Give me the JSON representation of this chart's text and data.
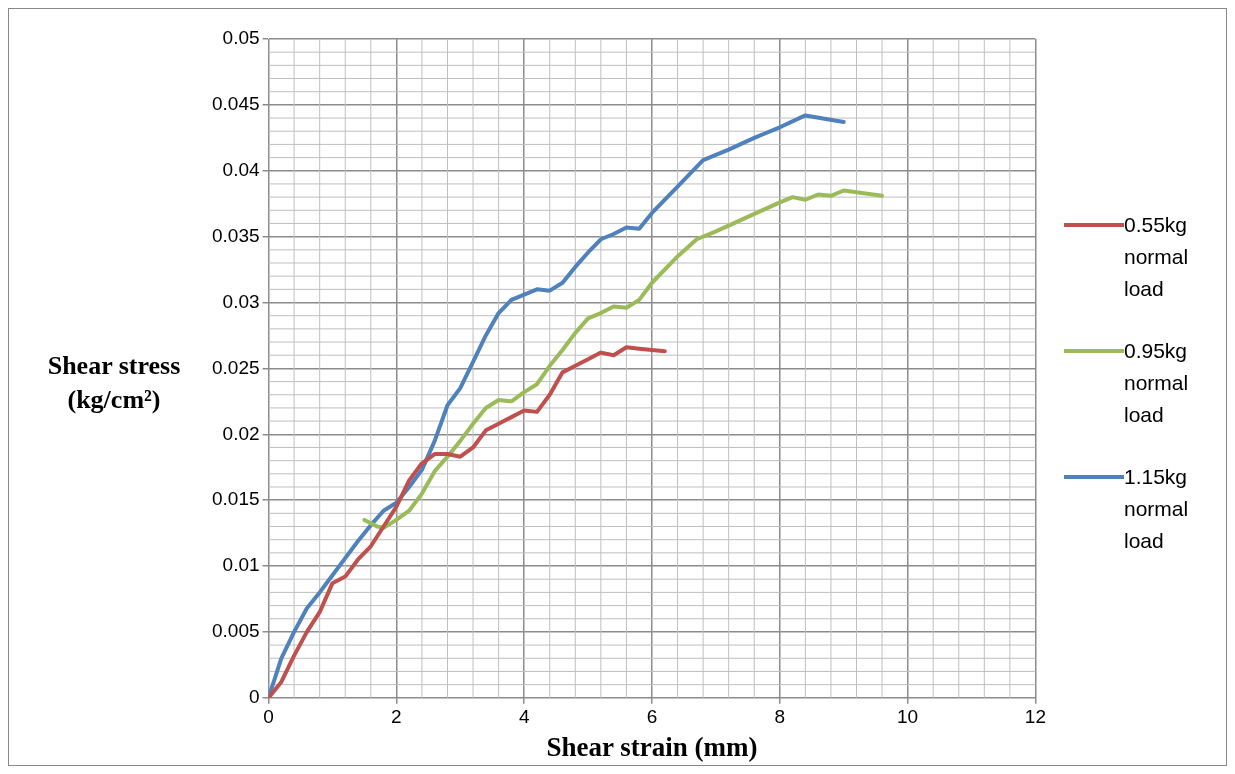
{
  "chart_data": {
    "type": "line",
    "xlabel": "Shear strain (mm)",
    "ylabel": "Shear stress (kg/cm²)",
    "xlim": [
      0,
      12
    ],
    "xticks": [
      0,
      2,
      4,
      6,
      8,
      10,
      12
    ],
    "ylim": [
      0,
      0.05
    ],
    "yticks": [
      0,
      0.005,
      0.01,
      0.015,
      0.02,
      0.025,
      0.03,
      0.035,
      0.04,
      0.045,
      0.05
    ],
    "grid": true,
    "legend": "right",
    "marker": "none",
    "line_style": "solid",
    "series": [
      {
        "name": "0.55kg normal load",
        "color": "#c0504d",
        "x": [
          0,
          0.2,
          0.4,
          0.6,
          0.8,
          1.0,
          1.2,
          1.4,
          1.6,
          1.8,
          2.0,
          2.2,
          2.4,
          2.6,
          2.8,
          3.0,
          3.2,
          3.4,
          3.6,
          3.8,
          4.0,
          4.2,
          4.4,
          4.6,
          4.8,
          5.0,
          5.2,
          5.4,
          5.6,
          5.8,
          6.0,
          6.2
        ],
        "values": [
          0,
          0.0012,
          0.0032,
          0.005,
          0.0065,
          0.0087,
          0.0092,
          0.0105,
          0.0115,
          0.013,
          0.0145,
          0.0165,
          0.0178,
          0.0185,
          0.0185,
          0.0183,
          0.019,
          0.0203,
          0.0208,
          0.0213,
          0.0218,
          0.0217,
          0.023,
          0.0247,
          0.0252,
          0.0257,
          0.0262,
          0.026,
          0.0266,
          0.0265,
          0.0264,
          0.0263
        ]
      },
      {
        "name": "0.95kg normal load",
        "color": "#9bbb59",
        "x": [
          1.5,
          1.7,
          1.8,
          2.0,
          2.2,
          2.4,
          2.6,
          2.8,
          3.0,
          3.2,
          3.4,
          3.6,
          3.8,
          4.0,
          4.2,
          4.4,
          4.6,
          4.8,
          5.0,
          5.2,
          5.4,
          5.6,
          5.8,
          6.0,
          6.4,
          6.7,
          7.0,
          7.5,
          8.0,
          8.2,
          8.4,
          8.6,
          8.8,
          9.0,
          9.6
        ],
        "values": [
          0.0135,
          0.013,
          0.0129,
          0.0135,
          0.0142,
          0.0155,
          0.0172,
          0.0183,
          0.0195,
          0.0208,
          0.022,
          0.0226,
          0.0225,
          0.0232,
          0.0238,
          0.0252,
          0.0264,
          0.0277,
          0.0288,
          0.0292,
          0.0297,
          0.0296,
          0.0302,
          0.0315,
          0.0335,
          0.0348,
          0.0354,
          0.0365,
          0.0376,
          0.038,
          0.0378,
          0.0382,
          0.0381,
          0.0385,
          0.0381
        ]
      },
      {
        "name": "1.15kg normal load",
        "color": "#4f81bd",
        "x": [
          0,
          0.2,
          0.4,
          0.6,
          0.8,
          1.0,
          1.2,
          1.4,
          1.6,
          1.8,
          2.0,
          2.2,
          2.4,
          2.6,
          2.8,
          3.0,
          3.2,
          3.4,
          3.6,
          3.8,
          4.0,
          4.2,
          4.4,
          4.6,
          4.8,
          5.0,
          5.2,
          5.4,
          5.6,
          5.8,
          6.0,
          6.4,
          6.8,
          7.2,
          7.6,
          8.0,
          8.4,
          9.0
        ],
        "values": [
          0,
          0.003,
          0.005,
          0.0068,
          0.008,
          0.0093,
          0.0106,
          0.0119,
          0.0131,
          0.0142,
          0.0148,
          0.016,
          0.0173,
          0.0195,
          0.0222,
          0.0235,
          0.0255,
          0.0275,
          0.0292,
          0.0302,
          0.0306,
          0.031,
          0.0309,
          0.0315,
          0.0327,
          0.0338,
          0.0348,
          0.0352,
          0.0357,
          0.0356,
          0.0368,
          0.0388,
          0.0408,
          0.0416,
          0.0425,
          0.0433,
          0.0442,
          0.0437
        ]
      }
    ]
  }
}
